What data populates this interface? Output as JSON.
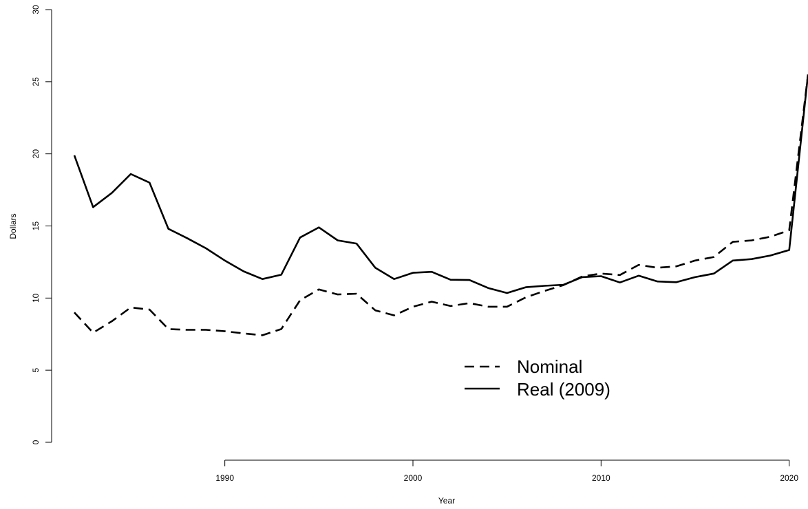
{
  "chart_data": {
    "type": "line",
    "title": "",
    "xlabel": "Year",
    "ylabel": "Dollars",
    "x": [
      1982,
      1983,
      1984,
      1985,
      1986,
      1987,
      1988,
      1989,
      1990,
      1991,
      1992,
      1993,
      1994,
      1995,
      1996,
      1997,
      1998,
      1999,
      2000,
      2001,
      2002,
      2003,
      2004,
      2005,
      2006,
      2007,
      2008,
      2009,
      2010,
      2011,
      2012,
      2013,
      2014,
      2015,
      2016,
      2017,
      2018,
      2019,
      2020,
      2021
    ],
    "xlim": [
      1980.5,
      2021
    ],
    "ylim": [
      0,
      30
    ],
    "x_ticks": [
      1990,
      2000,
      2010,
      2020
    ],
    "y_ticks": [
      0,
      5,
      10,
      15,
      20,
      25,
      30
    ],
    "grid": false,
    "legend_position": "bottom-center",
    "series": [
      {
        "name": "Nominal",
        "style": "dashed",
        "values": [
          9.0,
          7.6,
          8.4,
          9.35,
          9.2,
          7.85,
          7.8,
          7.8,
          7.7,
          7.55,
          7.42,
          7.85,
          9.85,
          10.6,
          10.25,
          10.3,
          9.15,
          8.8,
          9.4,
          9.75,
          9.45,
          9.65,
          9.4,
          9.4,
          10.05,
          10.5,
          10.9,
          11.5,
          11.7,
          11.6,
          12.3,
          12.1,
          12.2,
          12.6,
          12.85,
          13.9,
          14.0,
          14.25,
          14.7,
          25.5
        ]
      },
      {
        "name": "Real (2009)",
        "style": "solid",
        "values": [
          19.9,
          16.3,
          17.3,
          18.6,
          18.0,
          14.8,
          14.15,
          13.45,
          12.6,
          11.85,
          11.32,
          11.62,
          14.2,
          14.9,
          14.0,
          13.78,
          12.1,
          11.32,
          11.75,
          11.82,
          11.27,
          11.25,
          10.7,
          10.35,
          10.75,
          10.85,
          10.92,
          11.45,
          11.52,
          11.08,
          11.55,
          11.15,
          11.1,
          11.45,
          11.7,
          12.6,
          12.7,
          12.95,
          13.33,
          25.5
        ]
      }
    ]
  }
}
